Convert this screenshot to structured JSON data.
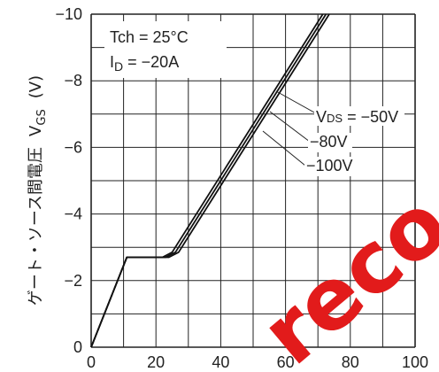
{
  "chart_data": {
    "type": "line",
    "ylabel_jp": "ゲート・ソース間電圧",
    "ylabel_sym_main": "V",
    "ylabel_sym_sub": "GS",
    "ylabel_unit": "(V)",
    "xlim": [
      0,
      100
    ],
    "ylim": [
      0,
      -10
    ],
    "x_ticks": [
      "0",
      "20",
      "40",
      "60",
      "80",
      "100"
    ],
    "x_tick_values": [
      0,
      20,
      40,
      60,
      80,
      100
    ],
    "y_ticks": [
      "0",
      "−2",
      "−4",
      "−6",
      "−8",
      "−10"
    ],
    "y_tick_values": [
      0,
      -2,
      -4,
      -6,
      -8,
      -10
    ],
    "grid": true,
    "conditions": {
      "line1": "Tch = 25°C",
      "line2_main": "I",
      "line2_sub": "D",
      "line2_rest": " = −20A"
    },
    "series": [
      {
        "name": "−50V",
        "x": [
          0,
          11,
          22,
          25,
          71.5
        ],
        "y": [
          0,
          -2.7,
          -2.7,
          -2.85,
          -10
        ]
      },
      {
        "name": "−80V",
        "x": [
          0,
          11,
          23,
          26,
          72.5
        ],
        "y": [
          0,
          -2.7,
          -2.7,
          -2.85,
          -10
        ]
      },
      {
        "name": "−100V",
        "x": [
          0,
          11,
          24,
          27,
          73.5
        ],
        "y": [
          0,
          -2.7,
          -2.7,
          -2.85,
          -10
        ]
      }
    ],
    "legend_prefix_main": "V",
    "legend_prefix_sub": "DS",
    "legend_prefix_rest": " = −50V",
    "legend_labels": [
      "−80V",
      "−100V"
    ],
    "watermark": "reco"
  }
}
